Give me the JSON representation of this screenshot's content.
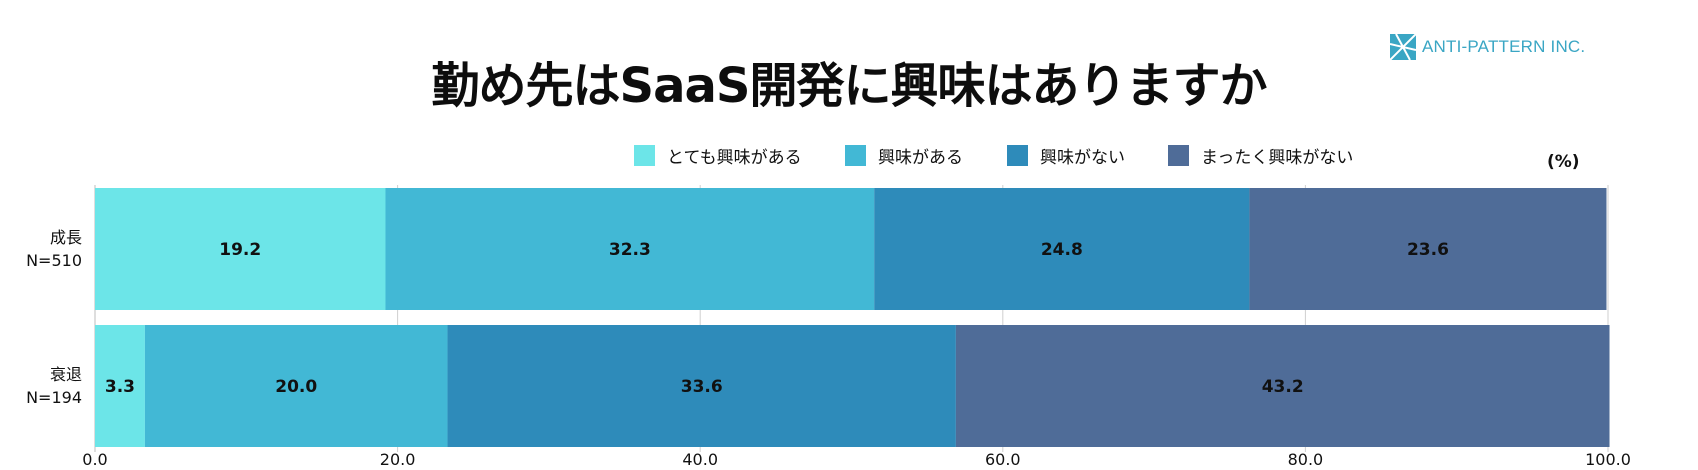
{
  "title": "勤め先はSaaS開発に興味はありますか",
  "logo": {
    "text": "ANTI-PATTERN INC.",
    "icon": "anti-pattern-logo-icon",
    "color": "#3aa6c4"
  },
  "chart_data": {
    "type": "bar",
    "orientation": "horizontal",
    "stacked": true,
    "unit_label": "(%)",
    "xlim": [
      0,
      100
    ],
    "xticks": [
      "0.0",
      "20.0",
      "40.0",
      "60.0",
      "80.0",
      "100.0"
    ],
    "grid": true,
    "legend_position": "top",
    "categories": [
      {
        "name": "成長",
        "n": "N=510"
      },
      {
        "name": "衰退",
        "n": "N=194"
      }
    ],
    "series": [
      {
        "name": "とても興味がある",
        "color": "#6ce5e8",
        "values": [
          19.2,
          3.3
        ],
        "labels": [
          "19.2",
          "3.3"
        ]
      },
      {
        "name": "興味がある",
        "color": "#42b8d5",
        "values": [
          32.3,
          20.0
        ],
        "labels": [
          "32.3",
          "20.0"
        ]
      },
      {
        "name": "興味がない",
        "color": "#2e8bba",
        "values": [
          24.8,
          33.6
        ],
        "labels": [
          "24.8",
          "33.6"
        ]
      },
      {
        "name": "まったく興味がない",
        "color": "#4f6c98",
        "values": [
          23.6,
          43.2
        ],
        "labels": [
          "23.6",
          "43.2"
        ]
      }
    ]
  }
}
